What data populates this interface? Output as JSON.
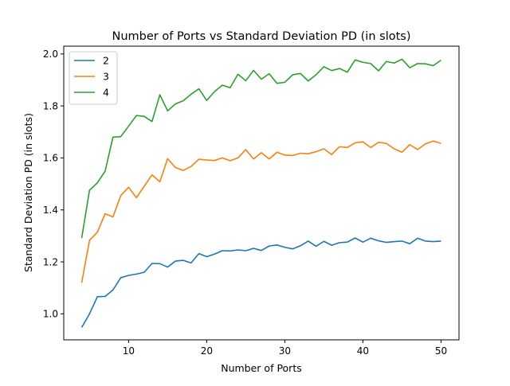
{
  "chart_data": {
    "type": "line",
    "title": "Number of Ports vs Standard Deviation PD (in slots)",
    "xlabel": "Number of Ports",
    "ylabel": "Standard Deviation PD (in slots)",
    "xlim": [
      1.7,
      52.3
    ],
    "ylim": [
      0.9,
      2.03
    ],
    "xticks": [
      10,
      20,
      30,
      40,
      50
    ],
    "yticks": [
      1.0,
      1.2,
      1.4,
      1.6,
      1.8,
      2.0
    ],
    "xtick_labels": [
      "10",
      "20",
      "30",
      "40",
      "50"
    ],
    "ytick_labels": [
      "1.0",
      "1.2",
      "1.4",
      "1.6",
      "1.8",
      "2.0"
    ],
    "grid": false,
    "legend_position": "top-left",
    "x": [
      4,
      5,
      6,
      7,
      8,
      9,
      10,
      11,
      12,
      13,
      14,
      15,
      16,
      17,
      18,
      19,
      20,
      21,
      22,
      23,
      24,
      25,
      26,
      27,
      28,
      29,
      30,
      31,
      32,
      33,
      34,
      35,
      36,
      37,
      38,
      39,
      40,
      41,
      42,
      43,
      44,
      45,
      46,
      47,
      48,
      49,
      50
    ],
    "series": [
      {
        "name": "2",
        "color": "#1f77b4",
        "values": [
          0.948,
          1.0,
          1.066,
          1.067,
          1.092,
          1.139,
          1.148,
          1.153,
          1.16,
          1.194,
          1.193,
          1.18,
          1.203,
          1.206,
          1.196,
          1.232,
          1.22,
          1.23,
          1.243,
          1.242,
          1.246,
          1.243,
          1.252,
          1.244,
          1.261,
          1.265,
          1.256,
          1.25,
          1.262,
          1.28,
          1.26,
          1.279,
          1.264,
          1.274,
          1.276,
          1.292,
          1.276,
          1.291,
          1.281,
          1.275,
          1.278,
          1.28,
          1.27,
          1.291,
          1.28,
          1.278,
          1.28
        ]
      },
      {
        "name": "3",
        "color": "#ff7f0e",
        "values": [
          1.12,
          1.283,
          1.314,
          1.385,
          1.373,
          1.455,
          1.487,
          1.447,
          1.491,
          1.535,
          1.508,
          1.597,
          1.563,
          1.552,
          1.567,
          1.595,
          1.592,
          1.59,
          1.6,
          1.589,
          1.6,
          1.632,
          1.596,
          1.62,
          1.596,
          1.622,
          1.611,
          1.609,
          1.618,
          1.616,
          1.624,
          1.635,
          1.613,
          1.643,
          1.64,
          1.658,
          1.662,
          1.64,
          1.66,
          1.656,
          1.635,
          1.622,
          1.651,
          1.632,
          1.654,
          1.665,
          1.656
        ]
      },
      {
        "name": "4",
        "color": "#2ca02c",
        "values": [
          1.292,
          1.476,
          1.504,
          1.549,
          1.68,
          1.682,
          1.722,
          1.763,
          1.76,
          1.74,
          1.843,
          1.781,
          1.808,
          1.82,
          1.845,
          1.866,
          1.821,
          1.855,
          1.88,
          1.87,
          1.922,
          1.897,
          1.937,
          1.903,
          1.924,
          1.887,
          1.891,
          1.92,
          1.925,
          1.896,
          1.92,
          1.951,
          1.936,
          1.944,
          1.93,
          1.977,
          1.968,
          1.963,
          1.935,
          1.971,
          1.965,
          1.98,
          1.947,
          1.963,
          1.962,
          1.955,
          1.976
        ]
      }
    ]
  }
}
